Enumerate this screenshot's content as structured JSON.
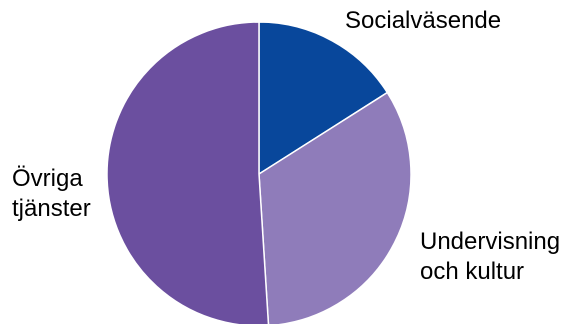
{
  "chart_data": {
    "type": "pie",
    "title": "",
    "slices": [
      {
        "label": "Socialväsende",
        "value": 16,
        "color": "#08479b"
      },
      {
        "label": "Undervisning och kultur",
        "value": 33,
        "color": "#8f7cba"
      },
      {
        "label": "Övriga tjänster",
        "value": 51,
        "color": "#6b4f9f"
      }
    ],
    "start_angle_deg": 0,
    "direction": "clockwise",
    "slice_border_color": "#ffffff"
  },
  "labels": {
    "social": "Socialväsende",
    "undervisning": "Undervisning\noch kultur",
    "ovriga": "Övriga\ntjänster"
  }
}
